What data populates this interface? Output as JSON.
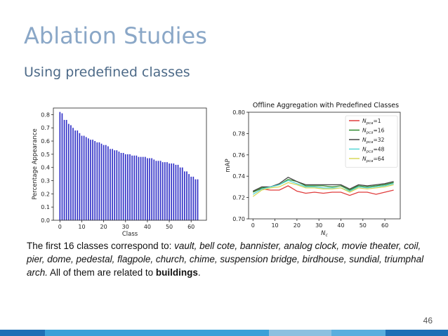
{
  "slide": {
    "title": "Ablation Studies",
    "subtitle": "Using predefined classes",
    "page_number": "46",
    "caption": {
      "intro": "The first 16 classes correspond to: ",
      "classes": "vault, bell cote, bannister, analog clock, movie theater, coil, pier, dome, pedestal, flagpole, church, chime, suspension bridge, birdhouse, sundial, triumphal arch.",
      "middle": "  All of them are related to ",
      "emphasis": "buildings",
      "end": "."
    },
    "bottom_bar_colors": [
      "#1f6fb5",
      "#3aa0d8",
      "#8cc0e0",
      "#5aaede",
      "#1f6fb5"
    ]
  },
  "chart_data": [
    {
      "type": "bar",
      "title": "",
      "xlabel": "Class",
      "ylabel": "Percentage Appearance",
      "xlim": [
        -3,
        67
      ],
      "ylim": [
        0,
        0.85
      ],
      "xticks": [
        0,
        10,
        20,
        30,
        40,
        50,
        60
      ],
      "yticks": [
        0.0,
        0.1,
        0.2,
        0.3,
        0.4,
        0.5,
        0.6,
        0.7,
        0.8
      ],
      "bar_color": "#3535c8",
      "x": [
        0,
        1,
        2,
        3,
        4,
        5,
        6,
        7,
        8,
        9,
        10,
        11,
        12,
        13,
        14,
        15,
        16,
        17,
        18,
        19,
        20,
        21,
        22,
        23,
        24,
        25,
        26,
        27,
        28,
        29,
        30,
        31,
        32,
        33,
        34,
        35,
        36,
        37,
        38,
        39,
        40,
        41,
        42,
        43,
        44,
        45,
        46,
        47,
        48,
        49,
        50,
        51,
        52,
        53,
        54,
        55,
        56,
        57,
        58,
        59,
        60,
        61,
        62,
        63
      ],
      "values": [
        0.82,
        0.81,
        0.76,
        0.76,
        0.73,
        0.72,
        0.7,
        0.68,
        0.68,
        0.66,
        0.64,
        0.64,
        0.63,
        0.62,
        0.61,
        0.61,
        0.6,
        0.59,
        0.59,
        0.58,
        0.57,
        0.57,
        0.56,
        0.54,
        0.54,
        0.53,
        0.53,
        0.52,
        0.51,
        0.51,
        0.5,
        0.5,
        0.5,
        0.49,
        0.49,
        0.49,
        0.48,
        0.48,
        0.48,
        0.48,
        0.47,
        0.47,
        0.47,
        0.46,
        0.45,
        0.45,
        0.45,
        0.44,
        0.44,
        0.44,
        0.43,
        0.43,
        0.43,
        0.42,
        0.42,
        0.4,
        0.4,
        0.37,
        0.37,
        0.35,
        0.33,
        0.33,
        0.31,
        0.31
      ]
    },
    {
      "type": "line",
      "title": "Offline Aggregation with Predefined Classes",
      "xlabel": "N_c",
      "ylabel": "mAP",
      "xlim": [
        -2,
        67
      ],
      "ylim": [
        0.7,
        0.8
      ],
      "xticks": [
        0,
        10,
        20,
        30,
        40,
        50,
        60
      ],
      "yticks": [
        0.7,
        0.72,
        0.74,
        0.76,
        0.78,
        0.8
      ],
      "legend_position": "top-right",
      "x": [
        0,
        4,
        8,
        12,
        16,
        20,
        24,
        28,
        32,
        36,
        40,
        44,
        48,
        52,
        56,
        60,
        64
      ],
      "series": [
        {
          "name": "N_pca=1",
          "label_main": "N",
          "label_sub": "pca",
          "label_rest": "=1",
          "color": "#e03c3c",
          "values": [
            0.726,
            0.728,
            0.727,
            0.727,
            0.731,
            0.726,
            0.724,
            0.725,
            0.724,
            0.725,
            0.725,
            0.722,
            0.725,
            0.725,
            0.723,
            0.725,
            0.727
          ]
        },
        {
          "name": "N_pca=16",
          "label_main": "N",
          "label_sub": "pca",
          "label_rest": "=16",
          "color": "#2f8a2f",
          "values": [
            0.725,
            0.729,
            0.73,
            0.732,
            0.737,
            0.735,
            0.731,
            0.731,
            0.731,
            0.73,
            0.731,
            0.727,
            0.731,
            0.73,
            0.731,
            0.732,
            0.734
          ]
        },
        {
          "name": "N_pca=32",
          "label_main": "N",
          "label_sub": "pca",
          "label_rest": "=32",
          "color": "#444444",
          "values": [
            0.726,
            0.73,
            0.73,
            0.733,
            0.739,
            0.735,
            0.732,
            0.732,
            0.732,
            0.732,
            0.732,
            0.728,
            0.732,
            0.731,
            0.732,
            0.733,
            0.735
          ]
        },
        {
          "name": "N_pca=48",
          "label_main": "N",
          "label_sub": "pca",
          "label_rest": "=48",
          "color": "#54d6d6",
          "values": [
            0.723,
            0.728,
            0.73,
            0.732,
            0.736,
            0.733,
            0.73,
            0.73,
            0.729,
            0.729,
            0.729,
            0.726,
            0.73,
            0.729,
            0.73,
            0.731,
            0.733
          ]
        },
        {
          "name": "N_pca=64",
          "label_main": "N",
          "label_sub": "pca",
          "label_rest": "=64",
          "color": "#d8d85a",
          "values": [
            0.721,
            0.727,
            0.729,
            0.73,
            0.734,
            0.732,
            0.729,
            0.729,
            0.728,
            0.728,
            0.729,
            0.725,
            0.729,
            0.728,
            0.729,
            0.73,
            0.732
          ]
        }
      ]
    }
  ]
}
